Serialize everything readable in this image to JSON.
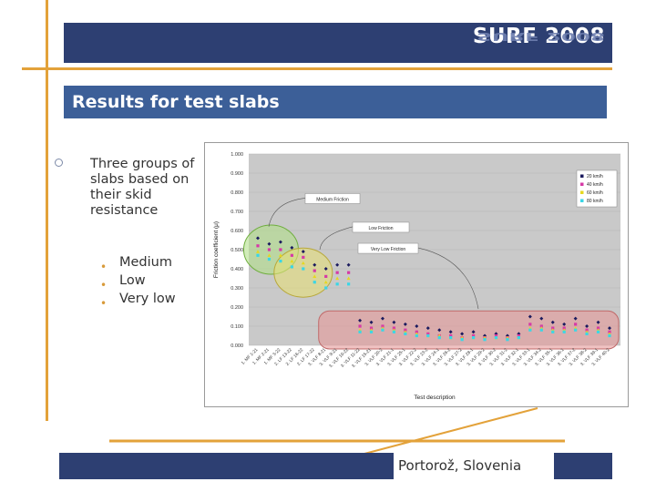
{
  "header": {
    "logo_text": "SURF 2008"
  },
  "slide": {
    "title": "Results for test slabs",
    "bullet": "Three groups of slabs based on their skid resistance",
    "sub_bullets": [
      "Medium",
      "Low",
      "Very low"
    ]
  },
  "footer": {
    "location": "Portorož, Slovenia"
  },
  "colors": {
    "banner": "#2d3f72",
    "title_bar": "#3c5f98",
    "accent_lines": "#e3a23a"
  },
  "chart_data": {
    "type": "scatter",
    "ylabel": "Friction coefficient (μ)",
    "xlabel": "Test description",
    "ylim": [
      0,
      1
    ],
    "yticks": [
      "0.000",
      "0.100",
      "0.200",
      "0.300",
      "0.400",
      "0.500",
      "0.600",
      "0.700",
      "0.800",
      "0.900",
      "1.000"
    ],
    "grid": true,
    "legend_position": "top-right",
    "categories": [
      "1. MF 1-21",
      "1. MF 2-21",
      "1. MF 3-22",
      "2. LF 13-22",
      "2. LF 16-22",
      "2. LF 17-22",
      "3. VLF 8-21",
      "3. VLF 9-21",
      "3. VLF 10-22",
      "3. VLF 11-22",
      "3. VLF 15-21",
      "3. VLF 20-2",
      "3. VLF 21-1",
      "3. VLF 25-1",
      "3. VLF 22-2",
      "3. VLF 23-2",
      "3. VLF 24-1",
      "3. VLF 26-2",
      "3. VLF 27-2",
      "3. VLF 28-1",
      "3. VLF 29-2",
      "3. VLF 30-2",
      "3. VLF 31-2",
      "3. VLF 32-1",
      "3. VLF 33-1",
      "3. VLF 34-2",
      "3. VLF 35-1",
      "3. VLF 36-1",
      "3. VLF 37-2",
      "3. VLF 38-2",
      "3. VLF 39-1",
      "3. VLF 40-2"
    ],
    "series": [
      {
        "name": "20 km/h",
        "color": "#1a1a5e",
        "values": [
          0.56,
          0.53,
          0.54,
          0.51,
          0.49,
          0.42,
          0.4,
          0.42,
          0.42,
          0.13,
          0.12,
          0.14,
          0.12,
          0.11,
          0.1,
          0.09,
          0.08,
          0.07,
          0.06,
          0.07,
          0.05,
          0.06,
          0.05,
          0.06,
          0.15,
          0.14,
          0.12,
          0.11,
          0.14,
          0.1,
          0.12,
          0.09
        ]
      },
      {
        "name": "40 km/h",
        "color": "#d63aa6",
        "values": [
          0.52,
          0.5,
          0.5,
          0.47,
          0.46,
          0.39,
          0.36,
          0.38,
          0.38,
          0.1,
          0.09,
          0.1,
          0.09,
          0.08,
          0.07,
          0.06,
          0.05,
          0.05,
          0.04,
          0.05,
          0.04,
          0.05,
          0.04,
          0.05,
          0.11,
          0.1,
          0.09,
          0.09,
          0.11,
          0.08,
          0.09,
          0.07
        ]
      },
      {
        "name": "60 km/h",
        "color": "#e6d820",
        "values": [
          0.49,
          0.47,
          0.47,
          0.44,
          0.43,
          0.36,
          0.33,
          0.35,
          0.35,
          0.08,
          0.08,
          0.09,
          0.08,
          0.07,
          0.06,
          0.05,
          0.05,
          0.04,
          0.04,
          0.04,
          0.04,
          0.04,
          0.04,
          0.04,
          0.09,
          0.09,
          0.08,
          0.08,
          0.09,
          0.07,
          0.08,
          0.06
        ]
      },
      {
        "name": "80 km/h",
        "color": "#3ad6e6",
        "values": [
          0.47,
          0.45,
          0.44,
          0.41,
          0.4,
          0.33,
          0.3,
          0.32,
          0.32,
          0.07,
          0.07,
          0.08,
          0.07,
          0.06,
          0.05,
          0.05,
          0.04,
          0.04,
          0.03,
          0.04,
          0.03,
          0.04,
          0.03,
          0.04,
          0.08,
          0.08,
          0.07,
          0.07,
          0.08,
          0.06,
          0.07,
          0.05
        ]
      }
    ],
    "annotations": [
      "Medium Friction",
      "Low Friction",
      "Very Low Friction"
    ]
  }
}
